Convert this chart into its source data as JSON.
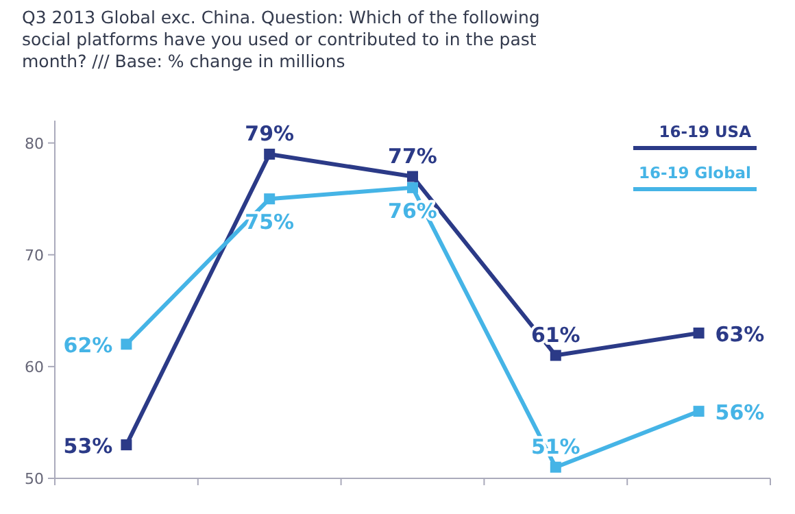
{
  "chart_data": {
    "type": "line",
    "title": "Q3 2013 Global exc. China. Question: Which of the following social platforms have you used or contributed to in the past month? /// Base: % change in millions",
    "categories": [
      null,
      null,
      null,
      null,
      null
    ],
    "series": [
      {
        "name": "16-19 USA",
        "color": "#2b3a87",
        "values": [
          53,
          79,
          77,
          61,
          63
        ],
        "value_labels": [
          "53%",
          "79%",
          "77%",
          "61%",
          "63%"
        ]
      },
      {
        "name": "16-19 Global",
        "color": "#45b4e6",
        "values": [
          62,
          75,
          76,
          51,
          56
        ],
        "value_labels": [
          "62%",
          "75%",
          "76%",
          "51%",
          "56%"
        ]
      }
    ],
    "ylim": [
      50,
      82
    ],
    "yticks": [
      50,
      60,
      70,
      80
    ],
    "grid": false,
    "legend": "top right",
    "marker": "square",
    "line_style": "solid"
  }
}
